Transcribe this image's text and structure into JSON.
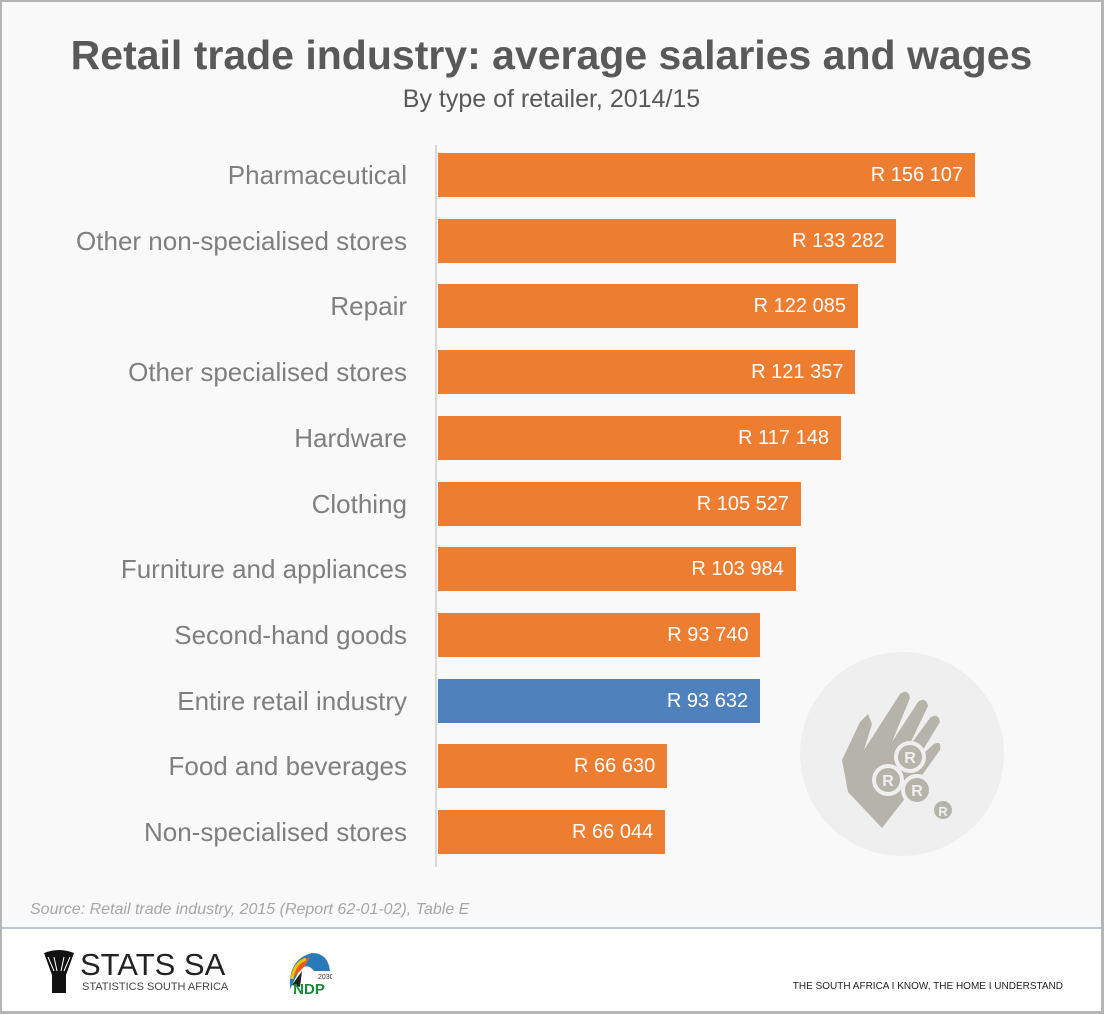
{
  "chart_data": {
    "type": "bar",
    "orientation": "horizontal",
    "title": "Retail trade industry: average salaries and wages",
    "subtitle": "By type of retailer, 2014/15",
    "categories": [
      "Pharmaceutical",
      "Other non-specialised stores",
      "Repair",
      "Other specialised stores",
      "Hardware",
      "Clothing",
      "Furniture and appliances",
      "Second-hand goods",
      "Entire retail industry",
      "Food and beverages",
      "Non-specialised stores"
    ],
    "values": [
      156107,
      133282,
      122085,
      121357,
      117148,
      105527,
      103984,
      93740,
      93632,
      66630,
      66044
    ],
    "labels": [
      "R 156 107",
      "R 133 282",
      "R 122 085",
      "R 121 357",
      "R 117 148",
      "R 105 527",
      "R 103 984",
      "R 93 740",
      "R 93 632",
      "R 66 630",
      "R 66 044"
    ],
    "highlight_index": 8,
    "colors": {
      "default": "#ed7d31",
      "highlight": "#4f81bd"
    },
    "xlim": [
      0,
      160000
    ],
    "grid": false
  },
  "source": "Source: Retail trade industry, 2015 (Report 62-01-02), Table E",
  "footer": {
    "logo_name": "STATS SA",
    "logo_sub": "STATISTICS SOUTH AFRICA",
    "ndp": "NDP 2030",
    "tagline": "THE SOUTH AFRICA I KNOW, THE HOME I UNDERSTAND"
  }
}
